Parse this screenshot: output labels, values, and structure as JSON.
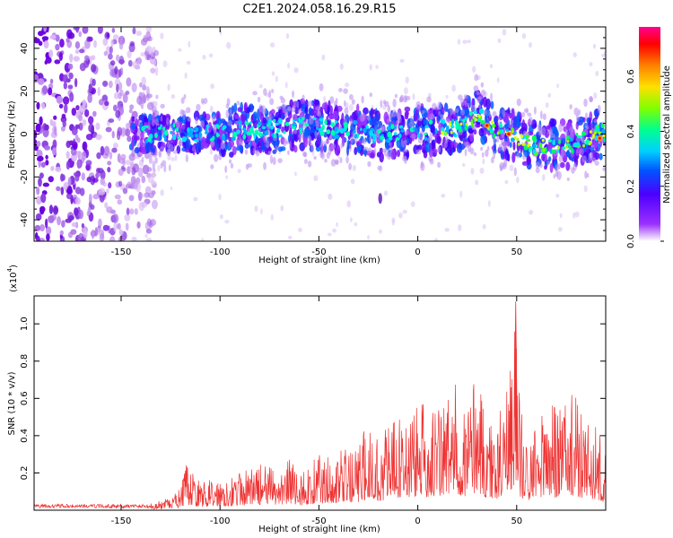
{
  "title": "C2E1.2024.058.16.29.R15",
  "chart_data": [
    {
      "type": "heatmap",
      "xlabel": "Height of straight line (km)",
      "ylabel": "Frequency (Hz)",
      "xlim": [
        -194,
        95
      ],
      "ylim": [
        -50,
        50
      ],
      "xticks": [
        -150,
        -100,
        -50,
        0,
        50
      ],
      "yticks": [
        -40,
        -20,
        0,
        20,
        40
      ],
      "grid": false,
      "colorbar": {
        "label": "Normalized spectral amplitude",
        "range": [
          0.0,
          0.78
        ],
        "ticks": [
          "0.0",
          "0.2",
          "0.4",
          "0.6"
        ]
      },
      "band_center_hz": [
        {
          "x": -140,
          "y": 0
        },
        {
          "x": -100,
          "y": 1
        },
        {
          "x": -50,
          "y": 4
        },
        {
          "x": -20,
          "y": 0
        },
        {
          "x": 0,
          "y": 1
        },
        {
          "x": 20,
          "y": 3
        },
        {
          "x": 30,
          "y": 9
        },
        {
          "x": 40,
          "y": 2
        },
        {
          "x": 60,
          "y": -6
        },
        {
          "x": 80,
          "y": -4
        },
        {
          "x": 95,
          "y": 1
        }
      ],
      "peak_points": [
        {
          "x": 35,
          "y": 4,
          "value": 0.75
        },
        {
          "x": 46,
          "y": 0,
          "value": 0.7
        },
        {
          "x": 92,
          "y": -2,
          "value": 0.72
        }
      ]
    },
    {
      "type": "line",
      "xlabel": "Height of straight line (km)",
      "ylabel": "SNR (10 * v/v)",
      "y_multiplier": "(x10",
      "y_multiplier_exp": "4",
      "y_multiplier_close": ")",
      "xlim": [
        -194,
        95
      ],
      "ylim": [
        0,
        1.15
      ],
      "xticks": [
        -150,
        -100,
        -50,
        0,
        50
      ],
      "yticks": [
        "0.2",
        "0.4",
        "0.6",
        "0.8",
        "1.0"
      ],
      "grid": false,
      "color": "#ee3333",
      "series": [
        {
          "x": [
            -194,
            -180,
            -160,
            -140,
            -130,
            -125,
            -120,
            -117,
            -110,
            -100,
            -90,
            -80,
            -70,
            -65,
            -60,
            -50,
            -40,
            -30,
            -25,
            -20,
            -15,
            -10,
            0,
            5,
            10,
            15,
            20,
            25,
            30,
            35,
            40,
            45,
            48,
            49,
            50,
            52,
            55,
            60,
            63,
            65,
            70,
            75,
            80,
            85,
            90,
            95
          ],
          "values": [
            0.02,
            0.02,
            0.02,
            0.03,
            0.05,
            0.07,
            0.12,
            0.25,
            0.15,
            0.18,
            0.2,
            0.25,
            0.22,
            0.3,
            0.2,
            0.3,
            0.32,
            0.34,
            0.5,
            0.4,
            0.48,
            0.52,
            0.58,
            0.58,
            0.58,
            0.65,
            0.7,
            0.6,
            0.82,
            0.5,
            0.48,
            0.75,
            1.0,
            1.12,
            0.9,
            0.55,
            0.42,
            0.5,
            0.6,
            0.65,
            0.55,
            0.7,
            0.62,
            0.5,
            0.5,
            0.3
          ]
        }
      ]
    }
  ]
}
